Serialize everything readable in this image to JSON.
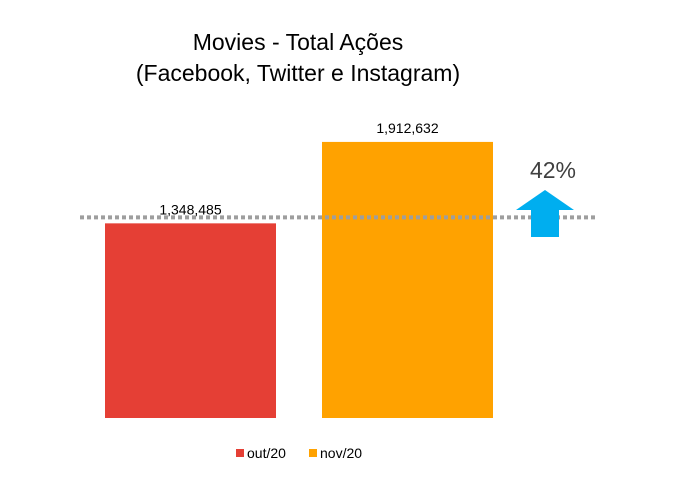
{
  "chart_data": {
    "type": "bar",
    "title": "Movies - Total Ações",
    "subtitle": "(Facebook, Twitter e Instagram)",
    "xlabel": "",
    "ylabel": "",
    "categories": [
      "out/20",
      "nov/20"
    ],
    "values": [
      1348485,
      1912632
    ],
    "data_labels": [
      "1,348,485",
      "1,912,632"
    ],
    "ylim": [
      0,
      2300000
    ],
    "grid": false,
    "legend_position": "bottom",
    "reference_line": 1348485,
    "annotation": {
      "text": "42%",
      "direction": "up"
    },
    "colors": {
      "bars": [
        "#e53f35",
        "#ffa200"
      ],
      "reference_line": "#9e9e9e",
      "arrow": "#00aeef",
      "annotation_text": "#404040",
      "text": "#000000"
    }
  }
}
